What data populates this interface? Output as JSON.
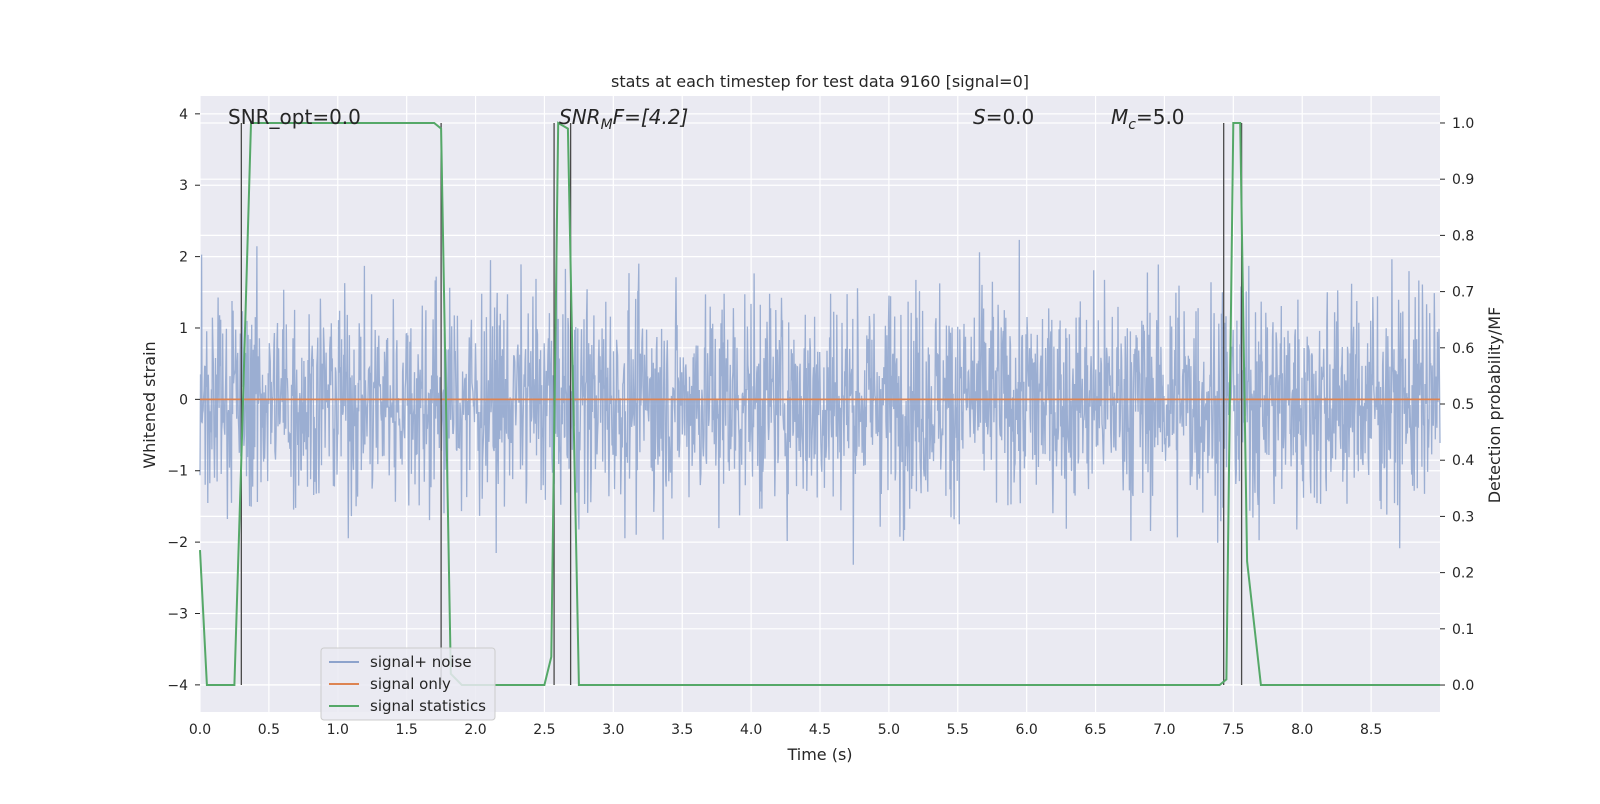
{
  "chart_data": {
    "type": "line",
    "title": "stats at each timestep for test data 9160 [signal=0]",
    "xlabel": "Time (s)",
    "ylabel": "Whitened strain",
    "y2label": "Detection probability/MF",
    "xlim": [
      0.0,
      9.0
    ],
    "ylim": [
      -4.38,
      4.25
    ],
    "y2lim": [
      -0.048,
      1.048
    ],
    "xticks": [
      "0.0",
      "0.5",
      "1.0",
      "1.5",
      "2.0",
      "2.5",
      "3.0",
      "3.5",
      "4.0",
      "4.5",
      "5.0",
      "5.5",
      "6.0",
      "6.5",
      "7.0",
      "7.5",
      "8.0",
      "8.5"
    ],
    "yticks": [
      "4",
      "3",
      "2",
      "1",
      "0",
      "−1",
      "−2",
      "−3",
      "−4"
    ],
    "y2ticks": [
      "1.0",
      "0.9",
      "0.8",
      "0.7",
      "0.6",
      "0.5",
      "0.4",
      "0.3",
      "0.2",
      "0.1",
      "0.0"
    ],
    "grid": true,
    "legend_position": "lower-left",
    "annotations": {
      "snr_opt": "SNR_opt=0.0",
      "snr_mf_base": "SNR",
      "snr_mf_sub": "M",
      "snr_mf_rest": "F=[4.2]",
      "s_sym": "S",
      "s_val": "=0.0",
      "mc_sym": "M",
      "mc_sub": "c",
      "mc_val": "=5.0"
    },
    "series": [
      {
        "name": "signal+ noise",
        "color": "#8da3cc",
        "kind": "noise",
        "x_range": [
          0.0,
          9.0
        ],
        "envelope": {
          "low": -2.2,
          "high": 2.2,
          "peak_max": 3.9,
          "peak_min": -4.0
        }
      },
      {
        "name": "signal only",
        "color": "#dd8452",
        "x": [
          0.0,
          9.0
        ],
        "y": [
          0.0,
          0.0
        ]
      },
      {
        "name": "signal statistics",
        "color": "#55a868",
        "axis": "right",
        "x": [
          0.0,
          0.05,
          0.25,
          0.3,
          0.37,
          1.7,
          1.75,
          1.82,
          1.9,
          2.5,
          2.55,
          2.6,
          2.67,
          2.75,
          7.4,
          7.45,
          7.5,
          7.55,
          7.6,
          7.7,
          7.8,
          9.0
        ],
        "y": [
          0.24,
          0.0,
          0.0,
          0.4,
          1.0,
          1.0,
          0.99,
          0.02,
          0.0,
          0.0,
          0.05,
          1.0,
          0.99,
          0.0,
          0.0,
          0.01,
          1.0,
          1.0,
          0.22,
          0.0,
          0.0,
          0.0
        ]
      }
    ],
    "trigger_lines_x": [
      0.3,
      1.75,
      2.57,
      2.69,
      7.43,
      7.56
    ]
  }
}
